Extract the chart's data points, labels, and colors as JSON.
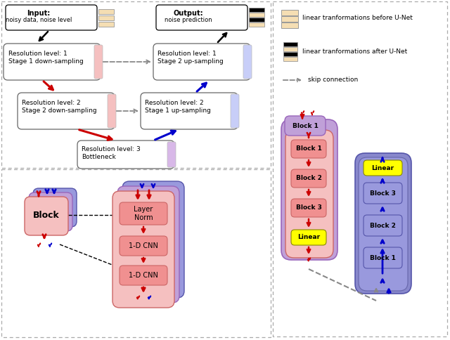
{
  "fig_width": 6.4,
  "fig_height": 4.84,
  "dpi": 100,
  "pink_light": "#f5c0c0",
  "pink_inner": "#f09090",
  "blue_light": "#c8cef8",
  "blue_mid": "#9999dd",
  "blue_dark": "#8888cc",
  "purple_light": "#d8b8e8",
  "purple_mid": "#c0a0d8",
  "yellow": "#ffff00",
  "tan_light": "#f5deb3",
  "red": "#cc0000",
  "blue_arr": "#0000cc",
  "gray": "#888888",
  "legend_before": "linear tranformations before U-Net",
  "legend_after": "linear tranformations after U-Net",
  "legend_skip": "skip connection"
}
